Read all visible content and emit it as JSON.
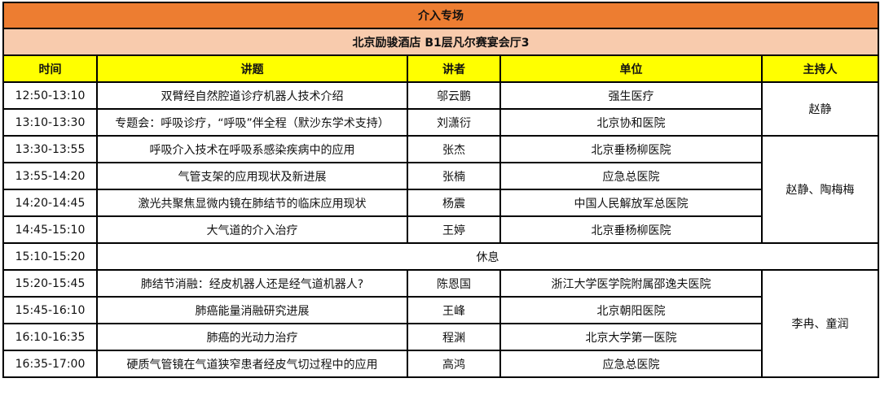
{
  "title": "介入专场",
  "venue": "北京励骏酒店 B1层凡尔赛宴会厅3",
  "headers": {
    "time": "时间",
    "topic": "讲题",
    "speaker": "讲者",
    "unit": "单位",
    "host": "主持人"
  },
  "colors": {
    "title_bg": "#ED7D31",
    "venue_bg": "#F8CBAD",
    "header_bg": "#FFFF00"
  },
  "rows": [
    {
      "time": "12:50-13:10",
      "topic": "双臂经自然腔道诊疗机器人技术介绍",
      "speaker": "邬云鹏",
      "unit": "强生医疗"
    },
    {
      "time": "13:10-13:30",
      "topic": "专题会：呼吸诊疗，“呼吸”伴全程（默沙东学术支持）",
      "speaker": "刘潇衍",
      "unit": "北京协和医院"
    },
    {
      "time": "13:30-13:55",
      "topic": "呼吸介入技术在呼吸系感染疾病中的应用",
      "speaker": "张杰",
      "unit": "北京垂杨柳医院"
    },
    {
      "time": "13:55-14:20",
      "topic": "气管支架的应用现状及新进展",
      "speaker": "张楠",
      "unit": "应急总医院"
    },
    {
      "time": "14:20-14:45",
      "topic": "激光共聚焦显微内镜在肺结节的临床应用现状",
      "speaker": "杨震",
      "unit": "中国人民解放军总医院"
    },
    {
      "time": "14:45-15:10",
      "topic": "大气道的介入治疗",
      "speaker": "王婷",
      "unit": "北京垂杨柳医院"
    },
    {
      "time": "15:10-15:20",
      "break": "休息"
    },
    {
      "time": "15:20-15:45",
      "topic": "肺结节消融：经皮机器人还是经气道机器人?",
      "speaker": "陈恩国",
      "unit": "浙江大学医学院附属邵逸夫医院"
    },
    {
      "time": "15:45-16:10",
      "topic": "肺癌能量消融研究进展",
      "speaker": "王峰",
      "unit": "北京朝阳医院"
    },
    {
      "time": "16:10-16:35",
      "topic": "肺癌的光动力治疗",
      "speaker": "程渊",
      "unit": "北京大学第一医院"
    },
    {
      "time": "16:35-17:00",
      "topic": "硬质气管镜在气道狭窄患者经皮气切过程中的应用",
      "speaker": "高鸿",
      "unit": "应急总医院"
    }
  ],
  "hosts": [
    "赵静",
    "赵静、陶梅梅",
    "李冉、童润"
  ]
}
